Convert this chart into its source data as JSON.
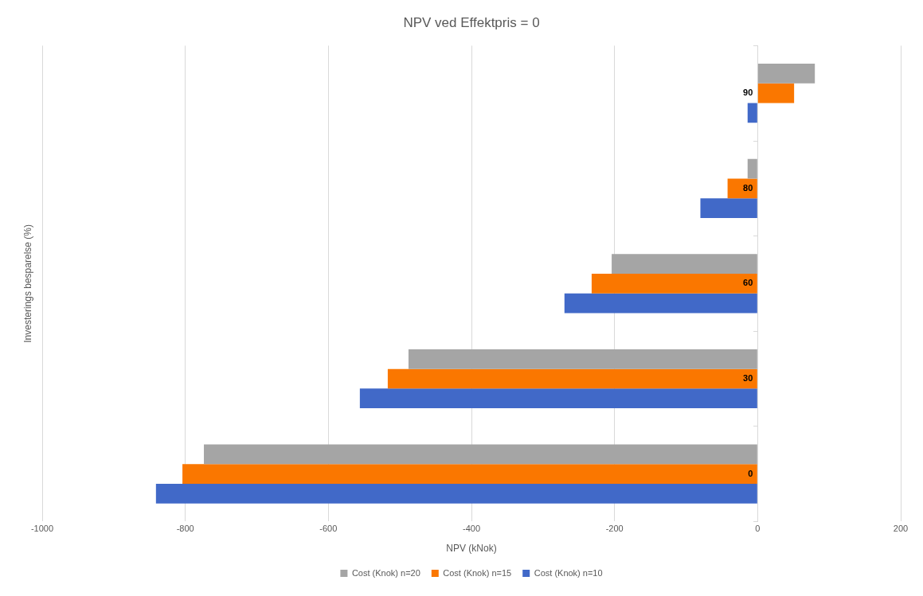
{
  "chart_data": {
    "type": "bar",
    "orientation": "horizontal",
    "title": "NPV ved Effektpris = 0",
    "xlabel": "NPV (kNok)",
    "ylabel": "Investerings besparelse (%)",
    "categories": [
      "90",
      "80",
      "60",
      "30",
      "0"
    ],
    "series": [
      {
        "name": "Cost (Knok) n=20",
        "color": "#a5a5a5",
        "values": [
          80,
          -14,
          -204,
          -488,
          -774
        ]
      },
      {
        "name": "Cost (Knok) n=15",
        "color": "#fa7700",
        "values": [
          51,
          -42,
          -232,
          -517,
          -804
        ]
      },
      {
        "name": "Cost (Knok) n=10",
        "color": "#4169c8",
        "values": [
          -14,
          -80,
          -270,
          -556,
          -841
        ]
      }
    ],
    "xlim": [
      -1000,
      200
    ],
    "xticks": [
      -1000,
      -800,
      -600,
      -400,
      -200,
      0,
      200
    ],
    "grid": "x",
    "legend": "bottom"
  }
}
